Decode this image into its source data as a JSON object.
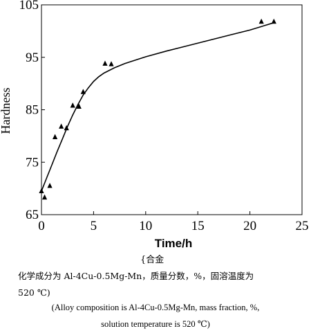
{
  "chart_data": {
    "type": "scatter",
    "xlabel": "Time/h",
    "ylabel": "Hardness",
    "xlim": [
      0,
      25
    ],
    "ylim": [
      65,
      105
    ],
    "x_ticks": [
      "0",
      "5",
      "10",
      "15",
      "20",
      "25"
    ],
    "y_ticks": [
      "65",
      "75",
      "85",
      "95",
      "105"
    ],
    "grid": false,
    "marker": "triangle",
    "points": [
      {
        "x": 0.0,
        "y": 69.5
      },
      {
        "x": 0.3,
        "y": 68.3
      },
      {
        "x": 0.8,
        "y": 70.5
      },
      {
        "x": 1.3,
        "y": 79.8
      },
      {
        "x": 1.9,
        "y": 81.8
      },
      {
        "x": 2.4,
        "y": 81.5
      },
      {
        "x": 3.0,
        "y": 85.8
      },
      {
        "x": 3.6,
        "y": 85.6
      },
      {
        "x": 4.0,
        "y": 88.4
      },
      {
        "x": 6.1,
        "y": 93.8
      },
      {
        "x": 6.7,
        "y": 93.7
      },
      {
        "x": 21.1,
        "y": 101.8
      },
      {
        "x": 22.3,
        "y": 101.8
      }
    ],
    "fit_curve": [
      {
        "x": 0.0,
        "y": 69.5
      },
      {
        "x": 0.5,
        "y": 72.0
      },
      {
        "x": 1.0,
        "y": 74.5
      },
      {
        "x": 1.5,
        "y": 77.0
      },
      {
        "x": 2.0,
        "y": 79.4
      },
      {
        "x": 2.5,
        "y": 81.8
      },
      {
        "x": 3.0,
        "y": 84.0
      },
      {
        "x": 3.5,
        "y": 86.0
      },
      {
        "x": 4.0,
        "y": 87.8
      },
      {
        "x": 4.5,
        "y": 89.2
      },
      {
        "x": 5.0,
        "y": 90.4
      },
      {
        "x": 5.5,
        "y": 91.3
      },
      {
        "x": 6.0,
        "y": 92.0
      },
      {
        "x": 7.0,
        "y": 93.0
      },
      {
        "x": 8.0,
        "y": 93.8
      },
      {
        "x": 10.0,
        "y": 95.1
      },
      {
        "x": 12.0,
        "y": 96.2
      },
      {
        "x": 14.0,
        "y": 97.2
      },
      {
        "x": 16.0,
        "y": 98.2
      },
      {
        "x": 18.0,
        "y": 99.2
      },
      {
        "x": 20.0,
        "y": 100.2
      },
      {
        "x": 22.3,
        "y": 101.6
      }
    ]
  },
  "caption": {
    "line1": "{合金",
    "line2": "化学成分为 Al-4Cu-0.5Mg-Mn，质量分数，%，固溶温度为",
    "line3": "520 ℃)",
    "line4": "(Alloy composition is Al-4Cu-0.5Mg-Mn, mass fraction, %,",
    "line5": "solution temperature is 520 ℃)"
  }
}
